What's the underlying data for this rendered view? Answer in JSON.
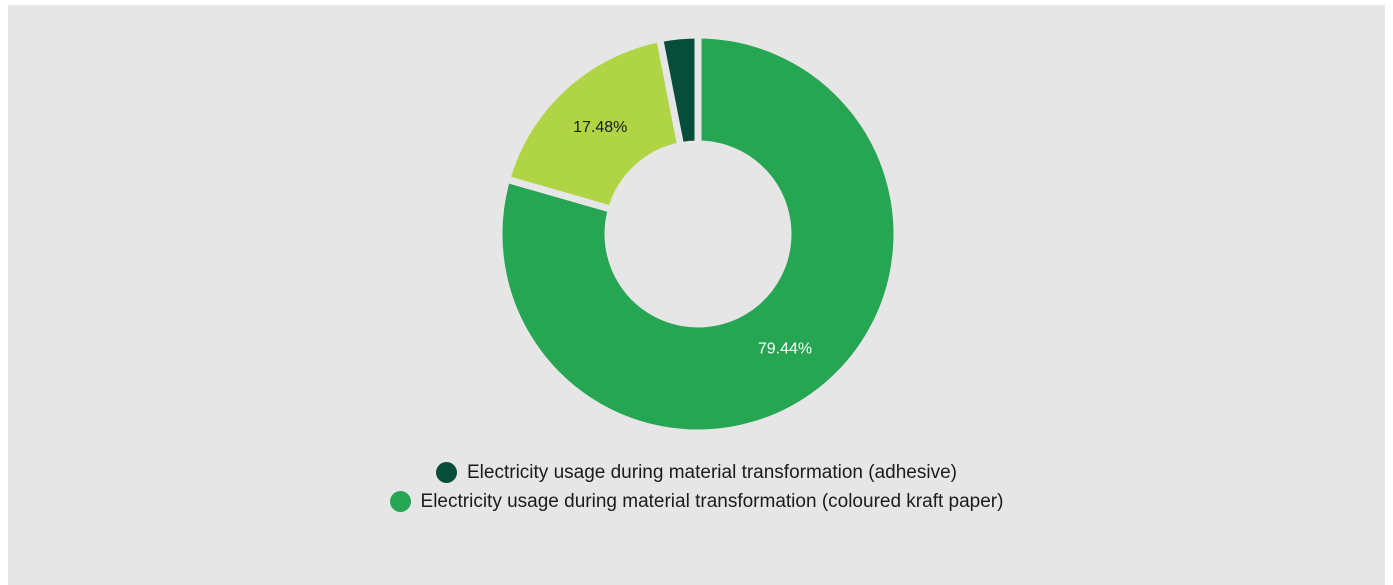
{
  "chart_data": {
    "type": "pie",
    "subtype": "donut",
    "slices": [
      {
        "name": "Electricity usage during material transformation (coloured kraft paper)",
        "value": 79.44,
        "label": "79.44%",
        "color": "#26a553",
        "label_color": "#ffffff"
      },
      {
        "name": "",
        "value": 17.48,
        "label": "17.48%",
        "color": "#afd544",
        "label_color": "#1b1b1b"
      },
      {
        "name": "Electricity usage during material transformation (adhesive)",
        "value": 3.08,
        "label": "",
        "color": "#064d3a",
        "label_color": "#ffffff"
      }
    ],
    "legend": {
      "placement": "bottom",
      "entries": [
        {
          "label": "Electricity usage during material transformation (adhesive)",
          "color": "#064d3a"
        },
        {
          "label": "Electricity usage during material transformation (coloured kraft paper)",
          "color": "#26a553"
        }
      ]
    }
  },
  "colors": {
    "background": "#e6e6e6",
    "page": "#ffffff"
  }
}
